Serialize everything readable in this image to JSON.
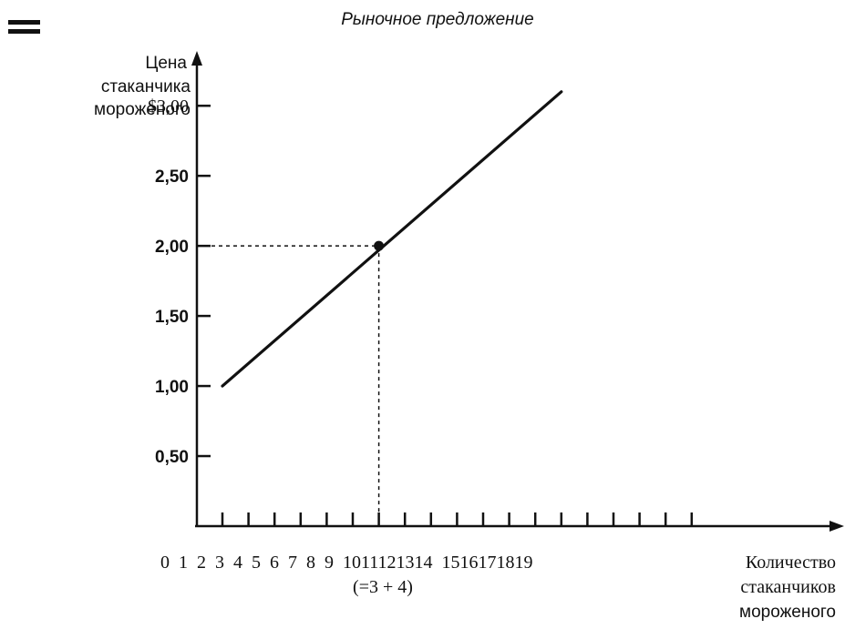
{
  "chart_data": {
    "type": "line",
    "title": "Рыночное   предложение",
    "ylabel": [
      "Цена",
      "стаканчика",
      "мороженого"
    ],
    "xlabel": [
      "Количество",
      "стаканчиков",
      "мороженого"
    ],
    "y_ticks": [
      {
        "value": 3.0,
        "label": "$3,00"
      },
      {
        "value": 2.5,
        "label": "2,50"
      },
      {
        "value": 2.0,
        "label": "2,00"
      },
      {
        "value": 1.5,
        "label": "1,50"
      },
      {
        "value": 1.0,
        "label": "1,00"
      },
      {
        "value": 0.5,
        "label": "0,50"
      }
    ],
    "x_tick_labels": "0  1  2  3  4  5  6  7  8  9  1011121314  1516171819",
    "x_annotation": "(=3 + 4)",
    "series": [
      {
        "x": [
          1,
          14
        ],
        "y": [
          1.0,
          3.1
        ]
      }
    ],
    "highlight_point": {
      "x": 7,
      "y": 2.0
    },
    "xlim": [
      0,
      26
    ],
    "ylim": [
      0,
      3.3
    ],
    "grid": false,
    "legend": false,
    "line_color": "#111111"
  },
  "decor": {
    "menu_icon": "double-bar-icon"
  }
}
